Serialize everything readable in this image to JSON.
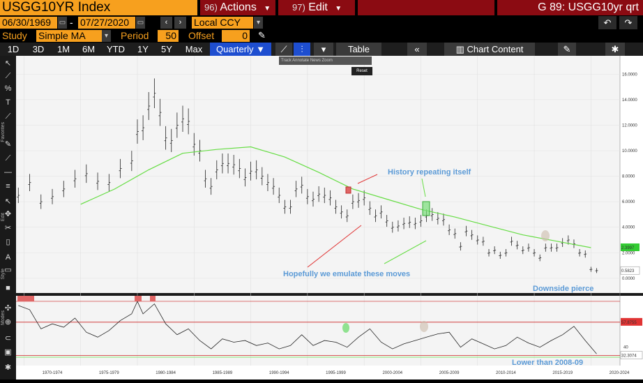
{
  "header": {
    "ticker": "USGG10YR Index",
    "actions_num": "96)",
    "actions_label": "Actions",
    "edit_num": "97)",
    "edit_label": "Edit",
    "chart_title": "G 89: USGG10yr qrt"
  },
  "range": {
    "start_date": "06/30/1969",
    "separator": "-",
    "end_date": "07/27/2020",
    "currency": "Local CCY"
  },
  "study": {
    "study_label": "Study",
    "study_value": "Simple MA",
    "period_label": "Period",
    "period_value": "50",
    "offset_label": "Offset",
    "offset_value": "0"
  },
  "toolbar": {
    "ranges": [
      "1D",
      "3D",
      "1M",
      "6M",
      "YTD",
      "1Y",
      "5Y",
      "Max"
    ],
    "frequency": "Quarterly",
    "table_label": "Table",
    "chart_content_label": "Chart Content"
  },
  "drawtools": {
    "items": [
      "Track",
      "Annotate",
      "News",
      "Zoom"
    ],
    "reset": "Reset"
  },
  "side": {
    "favorites_label": "Favorites",
    "edit_label": "Edit",
    "style_label": "Style",
    "modes_label": "Modes"
  },
  "annotations": {
    "history": "History repeating itself",
    "emulate": "Hopefully we emulate these moves",
    "downside": "Downside pierce",
    "lower": "Lower than 2008-09"
  },
  "chart_data": [
    {
      "type": "line",
      "title": "",
      "x_tick_labels": [
        "1970-1974",
        "1975-1979",
        "1980-1984",
        "1985-1989",
        "1990-1994",
        "1995-1999",
        "2000-2004",
        "2005-2009",
        "2010-2014",
        "2015-2019",
        "2020-2024"
      ],
      "y_tick_labels": [
        "16.0000",
        "14.0000",
        "12.0000",
        "10.0000",
        "8.0000",
        "6.0000",
        "4.0000",
        "2.0000",
        "0.0000"
      ],
      "ylim": [
        -0.5,
        17
      ],
      "series": [
        {
          "name": "USGG10YR Index",
          "x": [
            1969.5,
            1970.5,
            1971.5,
            1972.5,
            1973.5,
            1974.5,
            1975.5,
            1976.5,
            1977.5,
            1978.5,
            1979.5,
            1980.0,
            1980.5,
            1981.0,
            1981.5,
            1982.0,
            1982.5,
            1983.0,
            1983.5,
            1984.0,
            1984.5,
            1985.0,
            1985.5,
            1986.0,
            1986.5,
            1987.0,
            1987.5,
            1988.0,
            1988.5,
            1989.0,
            1989.5,
            1990.0,
            1990.5,
            1991.0,
            1991.5,
            1992.0,
            1992.5,
            1993.0,
            1993.5,
            1994.0,
            1994.5,
            1995.0,
            1995.5,
            1996.0,
            1996.5,
            1997.0,
            1997.5,
            1998.0,
            1998.5,
            1999.0,
            1999.5,
            2000.0,
            2000.5,
            2001.0,
            2001.5,
            2002.0,
            2002.5,
            2003.0,
            2003.5,
            2004.0,
            2004.5,
            2005.0,
            2005.5,
            2006.0,
            2006.5,
            2007.0,
            2007.5,
            2008.0,
            2008.5,
            2009.0,
            2009.5,
            2010.0,
            2010.5,
            2011.0,
            2011.5,
            2012.0,
            2012.5,
            2013.0,
            2013.5,
            2014.0,
            2014.5,
            2015.0,
            2015.5,
            2016.0,
            2016.5,
            2017.0,
            2017.5,
            2018.0,
            2018.5,
            2019.0,
            2019.5,
            2020.0,
            2020.5
          ],
          "values": [
            6.5,
            7.5,
            6.0,
            6.4,
            7.0,
            7.8,
            8.2,
            7.6,
            7.5,
            8.6,
            9.2,
            11.5,
            11.8,
            13.5,
            14.5,
            13.0,
            11.0,
            10.8,
            12.0,
            12.5,
            12.3,
            10.5,
            10.0,
            7.8,
            7.2,
            8.5,
            9.0,
            9.0,
            8.9,
            8.6,
            7.9,
            8.4,
            8.5,
            8.0,
            7.5,
            7.2,
            6.5,
            5.6,
            5.6,
            7.0,
            7.3,
            6.4,
            6.2,
            6.6,
            6.5,
            6.3,
            5.6,
            5.2,
            4.9,
            6.0,
            6.1,
            6.3,
            5.5,
            4.9,
            5.2,
            4.5,
            4.0,
            4.1,
            4.3,
            4.4,
            4.3,
            4.5,
            4.9,
            5.0,
            4.7,
            4.6,
            3.8,
            3.5,
            2.5,
            3.7,
            3.4,
            3.0,
            2.9,
            2.0,
            2.2,
            1.8,
            2.0,
            2.9,
            2.6,
            2.2,
            2.4,
            2.0,
            1.6,
            2.4,
            2.4,
            2.4,
            2.8,
            3.0,
            2.7,
            2.0,
            1.9,
            0.7,
            0.6
          ]
        },
        {
          "name": "Simple MA",
          "x": [
            1975,
            1978,
            1981,
            1984,
            1987,
            1990,
            1993,
            1996,
            1999,
            2002,
            2005,
            2008,
            2011,
            2014,
            2017,
            2020
          ],
          "values": [
            5.8,
            7.0,
            8.5,
            9.8,
            10.1,
            10.3,
            9.5,
            8.3,
            7.0,
            6.2,
            5.4,
            4.8,
            4.1,
            3.4,
            2.9,
            2.4
          ]
        }
      ],
      "last_values": [
        "2.3997",
        "0.5823"
      ]
    },
    {
      "type": "line",
      "title": "",
      "x_tick_labels": [
        "1970-1974",
        "1975-1979",
        "1980-1984",
        "1985-1989",
        "1990-1994",
        "1995-1999",
        "2000-2004",
        "2005-2009",
        "2010-2014",
        "2015-2019",
        "2020-2024"
      ],
      "ylim": [
        28,
        100
      ],
      "upper_band": 70,
      "lower_band": 30,
      "y_tick_labels": [
        "40"
      ],
      "last_values": [
        "57.8755",
        "32.3074"
      ],
      "series": [
        {
          "name": "RSI",
          "x": [
            1969.5,
            1970.5,
            1971.5,
            1972.5,
            1973.5,
            1974.5,
            1975.5,
            1976.5,
            1977.5,
            1978.5,
            1979.5,
            1980.0,
            1980.5,
            1981.5,
            1982.5,
            1983.5,
            1984.5,
            1985.5,
            1986.5,
            1987.5,
            1988.5,
            1989.5,
            1990.5,
            1991.5,
            1992.5,
            1993.5,
            1994.5,
            1995.5,
            1996.5,
            1997.5,
            1998.5,
            1999.5,
            2000.5,
            2001.5,
            2002.5,
            2003.5,
            2004.5,
            2005.5,
            2006.5,
            2007.5,
            2008.5,
            2009.5,
            2010.5,
            2011.5,
            2012.5,
            2013.5,
            2014.5,
            2015.5,
            2016.5,
            2017.5,
            2018.5,
            2019.5,
            2020.5
          ],
          "values": [
            90,
            85,
            62,
            68,
            64,
            75,
            58,
            52,
            60,
            72,
            80,
            95,
            80,
            92,
            68,
            55,
            62,
            48,
            38,
            50,
            46,
            48,
            42,
            45,
            38,
            42,
            55,
            42,
            48,
            46,
            40,
            52,
            62,
            46,
            38,
            44,
            48,
            52,
            56,
            58,
            40,
            50,
            44,
            38,
            42,
            52,
            45,
            40,
            48,
            55,
            65,
            48,
            32
          ]
        }
      ]
    }
  ],
  "colors": {
    "accent_orange": "#f7a01e",
    "header_red": "#8b0b12",
    "ma_green": "#66dd44",
    "annotation_blue": "#5b9ad6",
    "band_red": "#cc2222",
    "active_blue": "#1e4ed0"
  }
}
